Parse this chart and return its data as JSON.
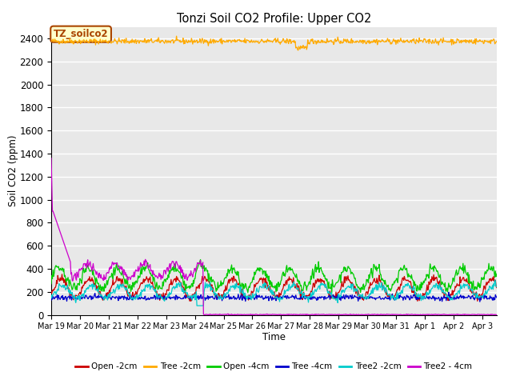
{
  "title": "Tonzi Soil CO2 Profile: Upper CO2",
  "xlabel": "Time",
  "ylabel": "Soil CO2 (ppm)",
  "ylim": [
    0,
    2500
  ],
  "xtick_labels": [
    "Mar 19",
    "Mar 20",
    "Mar 21",
    "Mar 22",
    "Mar 23",
    "Mar 24",
    "Mar 25",
    "Mar 26",
    "Mar 27",
    "Mar 28",
    "Mar 29",
    "Mar 30",
    "Mar 31",
    "Apr 1",
    "Apr 2",
    "Apr 3"
  ],
  "legend_entries": [
    {
      "label": "Open -2cm",
      "color": "#cc0000"
    },
    {
      "label": "Tree -2cm",
      "color": "#ffaa00"
    },
    {
      "label": "Open -4cm",
      "color": "#00cc00"
    },
    {
      "label": "Tree -4cm",
      "color": "#0000cc"
    },
    {
      "label": "Tree2 -2cm",
      "color": "#00cccc"
    },
    {
      "label": "Tree2 - 4cm",
      "color": "#cc00cc"
    }
  ],
  "annotation_label": "TZ_soilco2",
  "annotation_color": "#aa4400",
  "annotation_bg": "#ffffcc",
  "background_color": "#e8e8e8",
  "grid_color": "#ffffff"
}
